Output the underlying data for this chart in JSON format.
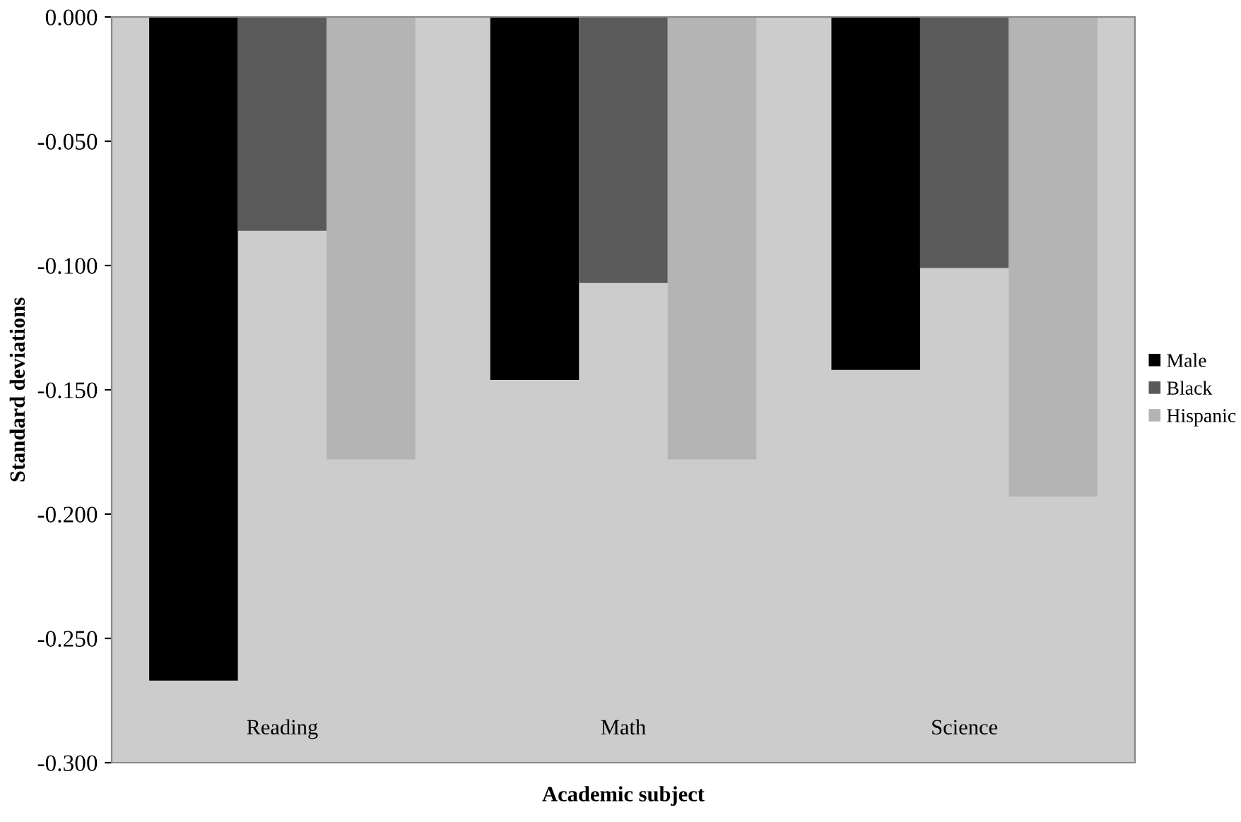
{
  "chart_data": {
    "type": "bar",
    "xlabel": "Academic subject",
    "ylabel": "Standard deviations",
    "categories": [
      "Reading",
      "Math",
      "Science"
    ],
    "series": [
      {
        "name": "Male",
        "color": "#000000",
        "values": [
          -0.267,
          -0.146,
          -0.142
        ]
      },
      {
        "name": "Black",
        "color": "#5a5a5a",
        "values": [
          -0.086,
          -0.107,
          -0.101
        ]
      },
      {
        "name": "Hispanic",
        "color": "#b4b4b4",
        "values": [
          -0.178,
          -0.178,
          -0.193
        ]
      }
    ],
    "ylim": [
      -0.3,
      0
    ],
    "yticks": [
      {
        "value": 0,
        "label": "0.000"
      },
      {
        "value": -0.05,
        "label": "-0.050"
      },
      {
        "value": -0.1,
        "label": "-0.100"
      },
      {
        "value": -0.15,
        "label": "-0.150"
      },
      {
        "value": -0.2,
        "label": "-0.200"
      },
      {
        "value": -0.25,
        "label": "-0.250"
      },
      {
        "value": -0.3,
        "label": "-0.300"
      }
    ],
    "grid": false,
    "legend": "right"
  }
}
